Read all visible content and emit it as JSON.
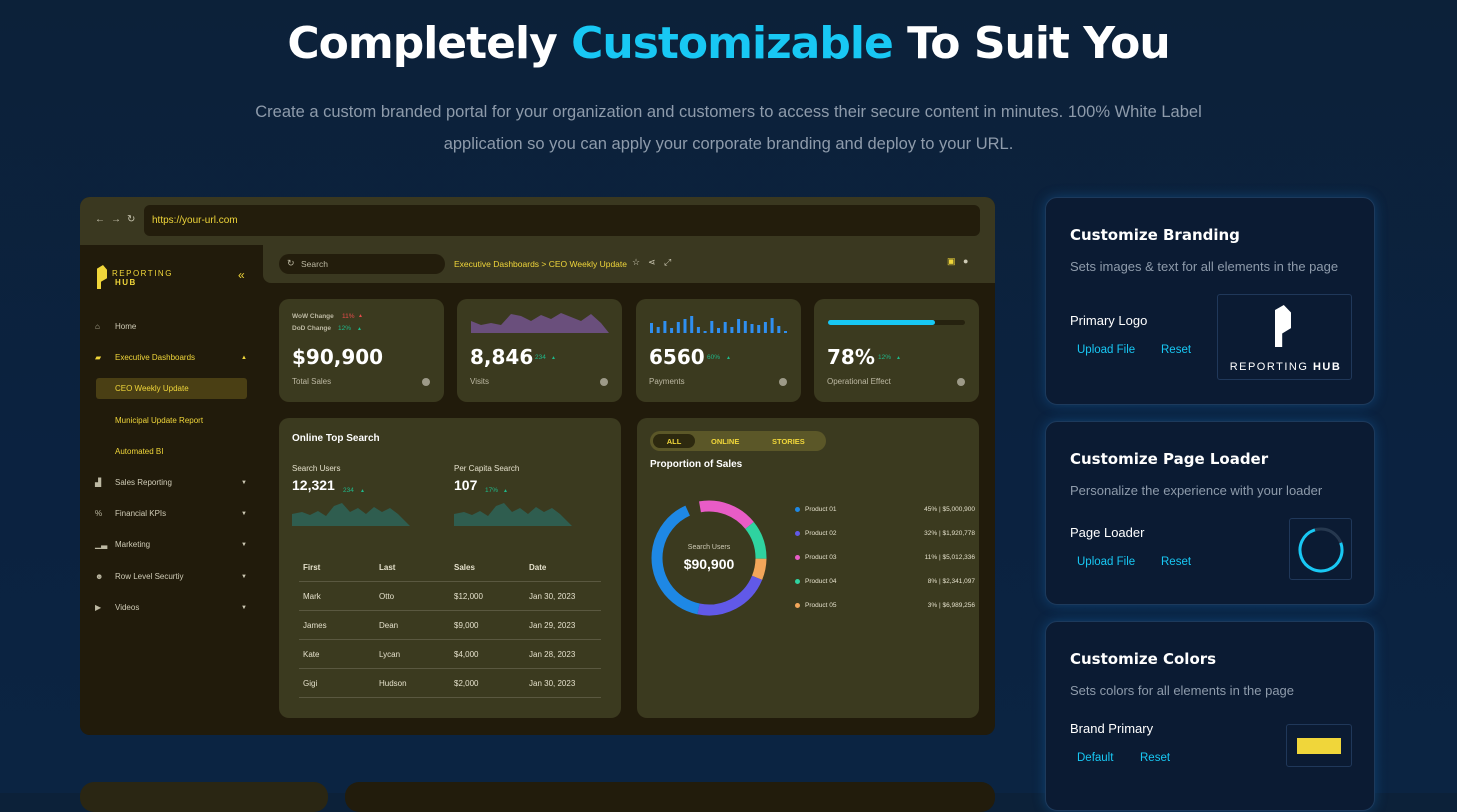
{
  "hero": {
    "title_a": "Completely ",
    "title_b": "Customizable",
    "title_c": " To Suit You",
    "subtitle": "Create a custom branded portal for your organization and customers to access their secure content in minutes. 100% White Label application so you can apply your corporate branding and deploy to your URL."
  },
  "browser": {
    "url": "https://your-url.com"
  },
  "app": {
    "logo_top": "REPORTING",
    "logo_bottom": "HUB",
    "search_placeholder": "Search",
    "breadcrumb": "Executive Dashboards > CEO Weekly Update",
    "menu": [
      {
        "label": "Home",
        "icon": "home-icon"
      },
      {
        "label": "Executive Dashboards",
        "icon": "briefcase-icon"
      },
      {
        "label": "Sales Reporting",
        "icon": "chart-icon"
      },
      {
        "label": "Financial KPIs",
        "icon": "percent-icon"
      },
      {
        "label": "Marketing",
        "icon": "bar-icon"
      },
      {
        "label": "Row Level Securtiy",
        "icon": "users-icon"
      },
      {
        "label": "Videos",
        "icon": "play-icon"
      }
    ],
    "submenu": [
      "CEO Weekly Update",
      "Municipal Update Report",
      "Automated BI"
    ],
    "kpis": [
      {
        "value": "$90,900",
        "label": "Total Sales",
        "wow_label": "WoW Change",
        "wow": "11%",
        "dod_label": "DoD Change",
        "dod": "12%"
      },
      {
        "value": "8,846",
        "label": "Visits",
        "change": "234"
      },
      {
        "value": "6560",
        "label": "Payments",
        "change": "60%"
      },
      {
        "value": "78%",
        "label": "Operational Effect",
        "change": "12%",
        "progress": 0.78
      }
    ],
    "top_search": {
      "title": "Online Top Search",
      "users_label": "Search Users",
      "users_value": "12,321",
      "users_change": "234",
      "capita_label": "Per Capita Search",
      "capita_value": "107",
      "capita_change": "17%",
      "columns": [
        "First",
        "Last",
        "Sales",
        "Date"
      ],
      "rows": [
        [
          "Mark",
          "Otto",
          "$12,000",
          "Jan 30, 2023"
        ],
        [
          "James",
          "Dean",
          "$9,000",
          "Jan 29, 2023"
        ],
        [
          "Kate",
          "Lycan",
          "$4,000",
          "Jan 28, 2023"
        ],
        [
          "Gigi",
          "Hudson",
          "$2,000",
          "Jan 30, 2023"
        ]
      ]
    },
    "sales": {
      "tabs": [
        "ALL",
        "ONLINE",
        "STORIES"
      ],
      "title": "Proportion of Sales",
      "center_label": "Search Users",
      "center_value": "$90,900",
      "products": [
        {
          "name": "Product 01",
          "pct": "45%",
          "amount": "$5,000,900",
          "color": "#1e88e5",
          "share": 45
        },
        {
          "name": "Product 02",
          "pct": "32%",
          "amount": "$1,920,778",
          "color": "#6159e8",
          "share": 32
        },
        {
          "name": "Product 03",
          "pct": "11%",
          "amount": "$5,012,336",
          "color": "#e85cc6",
          "share": 11
        },
        {
          "name": "Product 04",
          "pct": "8%",
          "amount": "$2,341,097",
          "color": "#2fd3a0",
          "share": 8
        },
        {
          "name": "Product 05",
          "pct": "3%",
          "amount": "$6,989,256",
          "color": "#f2a65a",
          "share": 3
        }
      ]
    }
  },
  "panels": [
    {
      "title": "Customize Branding",
      "desc": "Sets images & text for all elements in the page",
      "label": "Primary Logo",
      "action1": "Upload File",
      "action2": "Reset",
      "logo_text_a": "REPORTING ",
      "logo_text_b": "HUB"
    },
    {
      "title": "Customize Page Loader",
      "desc": "Personalize the experience with your loader",
      "label": "Page Loader",
      "action1": "Upload File",
      "action2": "Reset"
    },
    {
      "title": "Customize Colors",
      "desc": "Sets colors for all elements in the page",
      "label": "Brand Primary",
      "action1": "Default",
      "action2": "Reset",
      "swatch": "#f0d63a"
    }
  ]
}
